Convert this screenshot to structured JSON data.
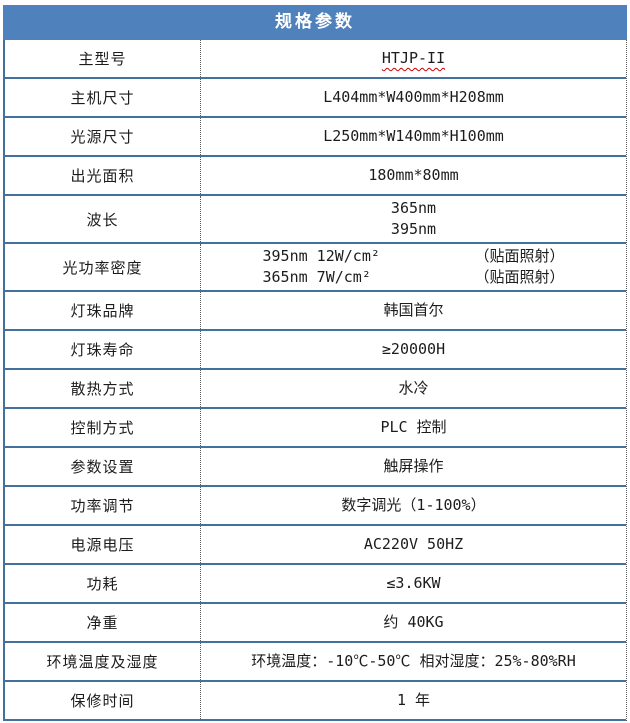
{
  "colors": {
    "header_bg": "#4F81BD",
    "header_text": "#FFFFFF",
    "row_line": "#41719C",
    "column_divider": "#595959",
    "spellcheck_underline": "#CC0000",
    "body_text": "#1C1C1C"
  },
  "table": {
    "header": "规格参数",
    "rows": [
      {
        "label": "主型号",
        "value": "HTJP-II",
        "wavy": true
      },
      {
        "label": "主机尺寸",
        "value": "L404mm*W400mm*H208mm"
      },
      {
        "label": "光源尺寸",
        "value": "L250mm*W140mm*H100mm"
      },
      {
        "label": "出光面积",
        "value": "180mm*80mm"
      },
      {
        "label": "波长",
        "lines": [
          "365nm",
          "395nm"
        ]
      },
      {
        "label": "光功率密度",
        "pairs": [
          [
            "395nm 12W/cm²",
            "（贴面照射）"
          ],
          [
            "365nm 7W/cm²",
            "（贴面照射）"
          ]
        ]
      },
      {
        "label": "灯珠品牌",
        "value": "韩国首尔"
      },
      {
        "label": "灯珠寿命",
        "value": "≥20000H"
      },
      {
        "label": "散热方式",
        "value": "水冷"
      },
      {
        "label": "控制方式",
        "value": "PLC 控制"
      },
      {
        "label": "参数设置",
        "value": "触屏操作"
      },
      {
        "label": "功率调节",
        "value": "数字调光（1-100%）"
      },
      {
        "label": "电源电压",
        "value": "AC220V 50HZ"
      },
      {
        "label": "功耗",
        "value": "≤3.6KW"
      },
      {
        "label": "净重",
        "value": "约 40KG"
      },
      {
        "label": "环境温度及湿度",
        "value": "环境温度：-10℃-50℃  相对湿度：25%-80%RH"
      },
      {
        "label": "保修时间",
        "value": "1 年"
      }
    ]
  }
}
